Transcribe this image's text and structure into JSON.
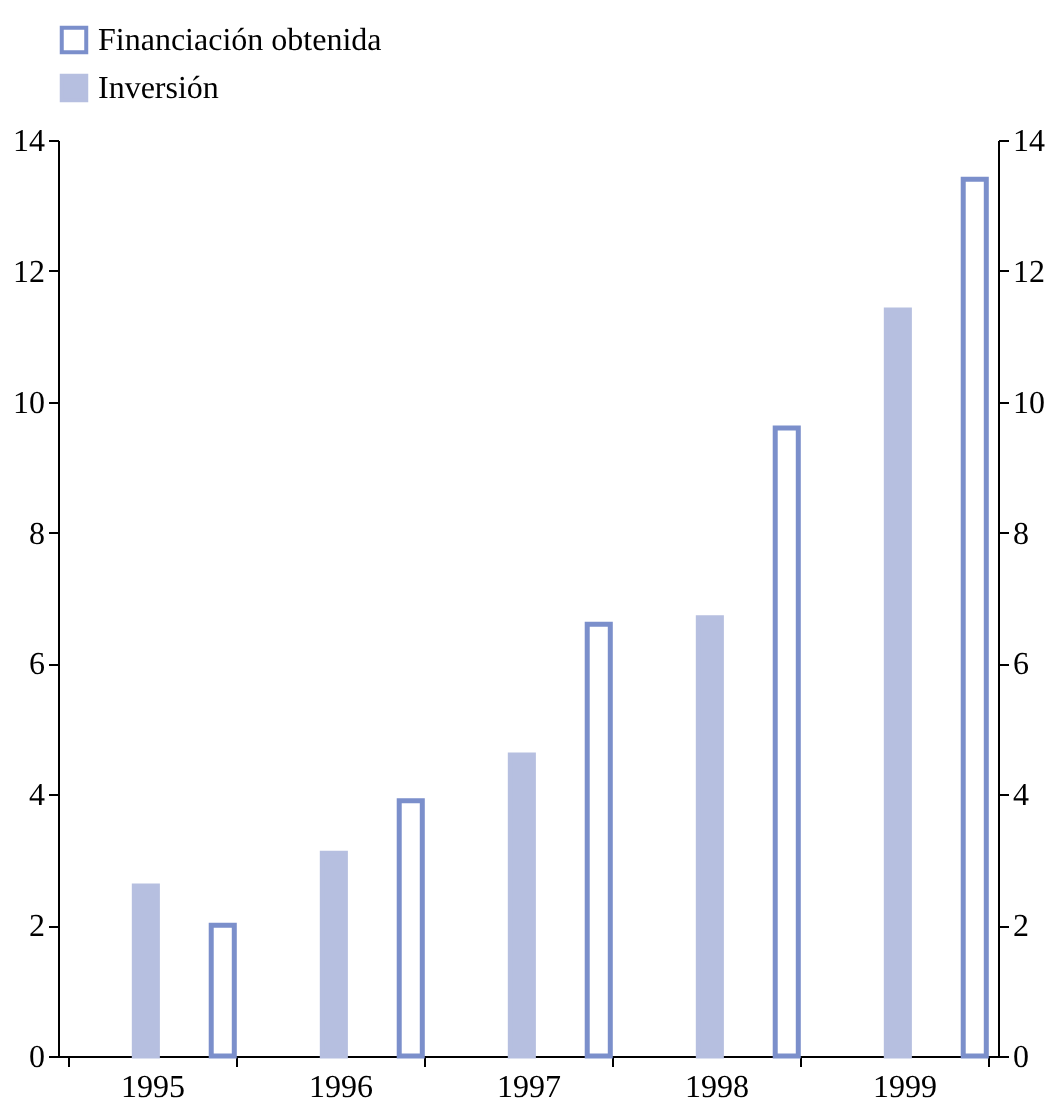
{
  "chart_data": {
    "type": "bar",
    "categories": [
      "1995",
      "1996",
      "1997",
      "1998",
      "1999"
    ],
    "series": [
      {
        "name": "Financiación obtenida",
        "color": "#7b8fcb",
        "values": [
          2.0,
          3.9,
          6.6,
          9.6,
          13.4
        ]
      },
      {
        "name": "Inversión",
        "color": "#b6bfe0",
        "values": [
          2.6,
          3.1,
          4.6,
          6.7,
          11.4
        ]
      }
    ],
    "ylim": [
      0,
      14
    ],
    "yticks": [
      0,
      2,
      4,
      6,
      8,
      10,
      12,
      14
    ],
    "y2lim": [
      0,
      14
    ],
    "y2ticks": [
      0,
      2,
      4,
      6,
      8,
      10,
      12,
      14
    ],
    "grid": false,
    "legend": "top left"
  }
}
